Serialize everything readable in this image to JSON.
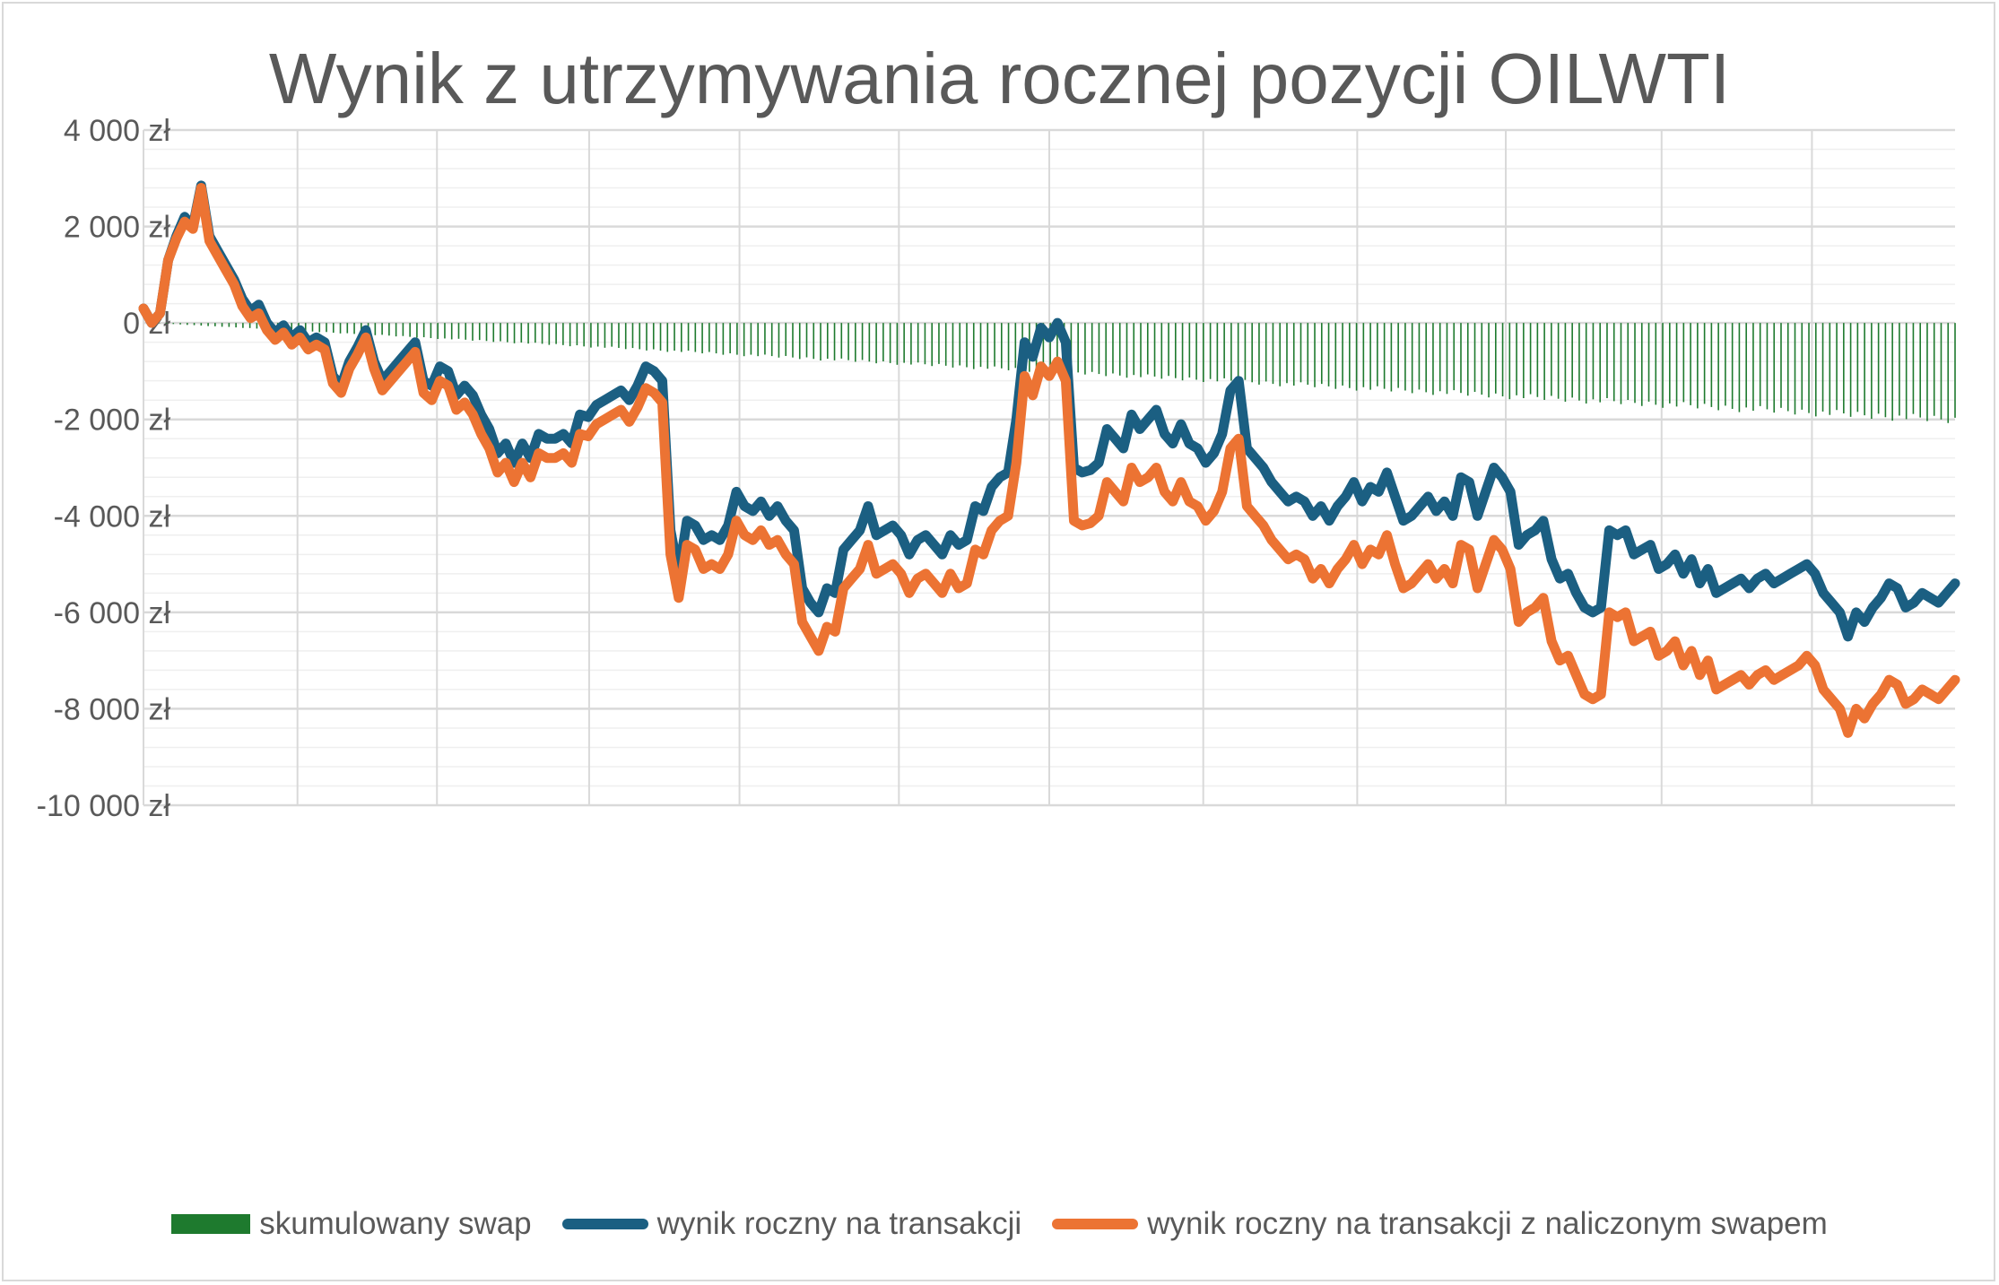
{
  "chart_data": {
    "type": "line",
    "title": "Wynik z utrzymywania rocznej pozycji OILWTI",
    "ylim": [
      -10000,
      4000
    ],
    "y_ticks": [
      4000,
      2000,
      0,
      -2000,
      -4000,
      -6000,
      -8000,
      -10000
    ],
    "y_tick_labels": [
      "4 000 zł",
      "2 000 zł",
      "0 zł",
      "-2 000 zł",
      "-4 000 zł",
      "-6 000 zł",
      "-8 000 zł",
      "-10 000 zł"
    ],
    "grid": true,
    "legend_position": "bottom",
    "series": [
      {
        "name": "skumulowany swap",
        "kind": "bar",
        "color": "#1e7a2e",
        "start_value": 0,
        "end_value": -2100
      },
      {
        "name": "wynik roczny na transakcji",
        "kind": "line",
        "color": "#1b5f82",
        "values": [
          300,
          0,
          200,
          1300,
          1800,
          2200,
          2000,
          2850,
          1800,
          1500,
          1200,
          900,
          500,
          250,
          380,
          0,
          -200,
          -50,
          -300,
          -150,
          -400,
          -300,
          -400,
          -1100,
          -1300,
          -800,
          -500,
          -150,
          -800,
          -1200,
          -1000,
          -800,
          -600,
          -400,
          -1200,
          -1300,
          -900,
          -1000,
          -1500,
          -1300,
          -1500,
          -1900,
          -2200,
          -2700,
          -2500,
          -2900,
          -2500,
          -2800,
          -2300,
          -2400,
          -2400,
          -2300,
          -2500,
          -1900,
          -1950,
          -1700,
          -1600,
          -1500,
          -1400,
          -1600,
          -1300,
          -900,
          -1000,
          -1200,
          -4300,
          -5200,
          -4100,
          -4200,
          -4500,
          -4400,
          -4500,
          -4200,
          -3500,
          -3800,
          -3900,
          -3700,
          -4000,
          -3800,
          -4100,
          -4300,
          -5500,
          -5800,
          -6000,
          -5500,
          -5600,
          -4700,
          -4500,
          -4300,
          -3800,
          -4400,
          -4300,
          -4200,
          -4400,
          -4800,
          -4500,
          -4400,
          -4600,
          -4800,
          -4400,
          -4600,
          -4500,
          -3800,
          -3900,
          -3400,
          -3200,
          -3100,
          -2000,
          -400,
          -700,
          -100,
          -300,
          0,
          -400,
          -3000,
          -3100,
          -3050,
          -2900,
          -2200,
          -2400,
          -2600,
          -1900,
          -2200,
          -2000,
          -1800,
          -2300,
          -2500,
          -2100,
          -2500,
          -2600,
          -2900,
          -2700,
          -2300,
          -1400,
          -1200,
          -2600,
          -2800,
          -3000,
          -3300,
          -3500,
          -3700,
          -3600,
          -3700,
          -4000,
          -3800,
          -4100,
          -3800,
          -3600,
          -3300,
          -3700,
          -3400,
          -3500,
          -3100,
          -3600,
          -4100,
          -4000,
          -3800,
          -3600,
          -3900,
          -3700,
          -4000,
          -3200,
          -3300,
          -4000,
          -3500,
          -3000,
          -3200,
          -3500,
          -4600,
          -4400,
          -4300,
          -4100,
          -4900,
          -5300,
          -5200,
          -5600,
          -5900,
          -6000,
          -5900,
          -4300,
          -4400,
          -4300,
          -4800,
          -4700,
          -4600,
          -5100,
          -5000,
          -4800,
          -5200,
          -4900,
          -5400,
          -5100,
          -5600,
          -5500,
          -5400,
          -5300,
          -5500,
          -5300,
          -5200,
          -5400,
          -5300,
          -5200,
          -5100,
          -5000,
          -5200,
          -5600,
          -5800,
          -6000,
          -6500,
          -6000,
          -6200,
          -5900,
          -5700,
          -5400,
          -5500,
          -5900,
          -5800,
          -5600,
          -5700,
          -5800,
          -5600,
          -5400
        ]
      },
      {
        "name": "wynik roczny na transakcji z naliczonym swapem",
        "kind": "line",
        "color": "#ec7333",
        "values": [
          300,
          0,
          200,
          1300,
          1750,
          2100,
          1950,
          2800,
          1700,
          1400,
          1100,
          800,
          350,
          100,
          200,
          -150,
          -350,
          -200,
          -450,
          -300,
          -550,
          -450,
          -550,
          -1250,
          -1450,
          -950,
          -650,
          -300,
          -950,
          -1400,
          -1200,
          -1000,
          -800,
          -600,
          -1450,
          -1600,
          -1200,
          -1300,
          -1800,
          -1650,
          -1900,
          -2300,
          -2600,
          -3100,
          -2900,
          -3300,
          -2900,
          -3200,
          -2700,
          -2800,
          -2800,
          -2700,
          -2900,
          -2300,
          -2350,
          -2100,
          -2000,
          -1900,
          -1800,
          -2050,
          -1750,
          -1350,
          -1450,
          -1650,
          -4800,
          -5700,
          -4600,
          -4700,
          -5100,
          -5000,
          -5100,
          -4800,
          -4100,
          -4400,
          -4500,
          -4300,
          -4600,
          -4500,
          -4800,
          -5000,
          -6200,
          -6500,
          -6800,
          -6300,
          -6400,
          -5500,
          -5300,
          -5100,
          -4600,
          -5200,
          -5100,
          -5000,
          -5200,
          -5600,
          -5300,
          -5200,
          -5400,
          -5600,
          -5200,
          -5500,
          -5400,
          -4700,
          -4800,
          -4300,
          -4100,
          -4000,
          -2900,
          -1100,
          -1500,
          -900,
          -1100,
          -800,
          -1200,
          -4100,
          -4200,
          -4150,
          -4000,
          -3300,
          -3500,
          -3700,
          -3000,
          -3300,
          -3200,
          -3000,
          -3500,
          -3700,
          -3300,
          -3700,
          -3800,
          -4100,
          -3900,
          -3500,
          -2600,
          -2400,
          -3800,
          -4000,
          -4200,
          -4500,
          -4700,
          -4900,
          -4800,
          -4900,
          -5300,
          -5100,
          -5400,
          -5100,
          -4900,
          -4600,
          -5000,
          -4700,
          -4800,
          -4400,
          -5000,
          -5500,
          -5400,
          -5200,
          -5000,
          -5300,
          -5100,
          -5400,
          -4600,
          -4700,
          -5500,
          -5000,
          -4500,
          -4700,
          -5100,
          -6200,
          -6000,
          -5900,
          -5700,
          -6600,
          -7000,
          -6900,
          -7300,
          -7700,
          -7800,
          -7700,
          -6000,
          -6100,
          -6000,
          -6600,
          -6500,
          -6400,
          -6900,
          -6800,
          -6600,
          -7100,
          -6800,
          -7300,
          -7000,
          -7600,
          -7500,
          -7400,
          -7300,
          -7500,
          -7300,
          -7200,
          -7400,
          -7300,
          -7200,
          -7100,
          -6900,
          -7100,
          -7600,
          -7800,
          -8000,
          -8500,
          -8000,
          -8200,
          -7900,
          -7700,
          -7400,
          -7500,
          -7900,
          -7800,
          -7600,
          -7700,
          -7800,
          -7600,
          -7400
        ]
      }
    ]
  }
}
